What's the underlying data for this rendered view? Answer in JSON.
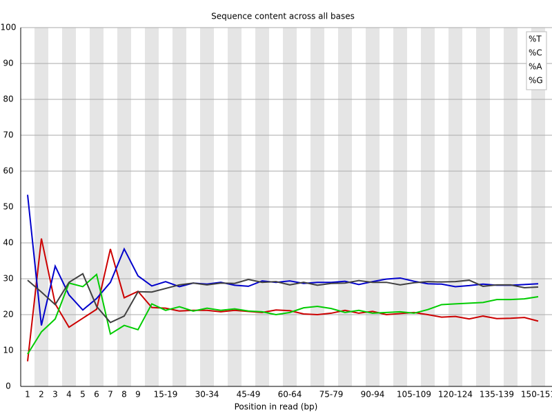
{
  "chart_data": {
    "type": "line",
    "title": "Sequence content across all bases",
    "x_label": "Position in read (bp)",
    "categories": [
      "1",
      "2",
      "3",
      "4",
      "5",
      "6",
      "7",
      "8",
      "9",
      null,
      "15-19",
      null,
      null,
      "30-34",
      null,
      null,
      "45-49",
      null,
      null,
      "60-64",
      null,
      null,
      "75-79",
      null,
      null,
      "90-94",
      null,
      null,
      "105-109",
      null,
      null,
      "120-124",
      null,
      null,
      "135-139",
      null,
      null,
      "150-151"
    ],
    "ylim": [
      0,
      100
    ],
    "yticks": [
      0,
      10,
      20,
      30,
      40,
      50,
      60,
      70,
      80,
      90,
      100
    ],
    "grid": true,
    "legend": "top-right",
    "series": [
      {
        "name": "%T",
        "color": "#cc0000",
        "values": [
          7,
          41.2,
          23,
          16.5,
          19,
          21.5,
          38.3,
          24.7,
          26.5,
          22,
          21.8,
          21,
          21.2,
          21.2,
          20.8,
          21.2,
          20.9,
          20.6,
          21.3,
          21.1,
          20.2,
          20,
          20.4,
          21.2,
          20.4,
          20.9,
          20,
          20.3,
          20.6,
          20,
          19.3,
          19.5,
          18.8,
          19.6,
          18.9,
          19,
          19.2,
          18.2
        ]
      },
      {
        "name": "%C",
        "color": "#0000cc",
        "values": [
          53.4,
          17,
          33.5,
          25.5,
          21.3,
          24.5,
          29,
          38.3,
          30.8,
          28,
          29.2,
          27.8,
          28.8,
          28.5,
          29,
          28.2,
          27.9,
          29.4,
          29,
          29.4,
          28.7,
          29,
          29,
          29.3,
          28.4,
          29.2,
          29.9,
          30.2,
          29.3,
          28.6,
          28.5,
          27.8,
          28.1,
          28.5,
          28.2,
          28.2,
          28.4,
          28.6
        ]
      },
      {
        "name": "%A",
        "color": "#00cc00",
        "values": [
          9,
          15.2,
          18.8,
          28.8,
          27.8,
          31.2,
          14.6,
          17,
          15.8,
          23,
          21.2,
          22.2,
          21,
          21.8,
          21.2,
          21.6,
          21,
          20.8,
          20,
          20.6,
          21.9,
          22.3,
          21.7,
          20.6,
          21.2,
          20.4,
          20.6,
          20.8,
          20.4,
          21.4,
          22.8,
          23,
          23.2,
          23.4,
          24.2,
          24.2,
          24.4,
          25
        ]
      },
      {
        "name": "%G",
        "color": "#404040",
        "values": [
          29.6,
          26.3,
          22.8,
          29,
          31.4,
          22.3,
          17.8,
          19.6,
          26.4,
          26.3,
          27.3,
          28.3,
          28.8,
          28.3,
          28.8,
          28.7,
          29.8,
          29,
          29.2,
          28.3,
          29,
          28.2,
          28.7,
          28.8,
          29.5,
          29,
          29,
          28.3,
          28.9,
          29.2,
          29.1,
          29.2,
          29.6,
          27.9,
          28.3,
          28.3,
          27.5,
          27.7
        ]
      }
    ]
  }
}
